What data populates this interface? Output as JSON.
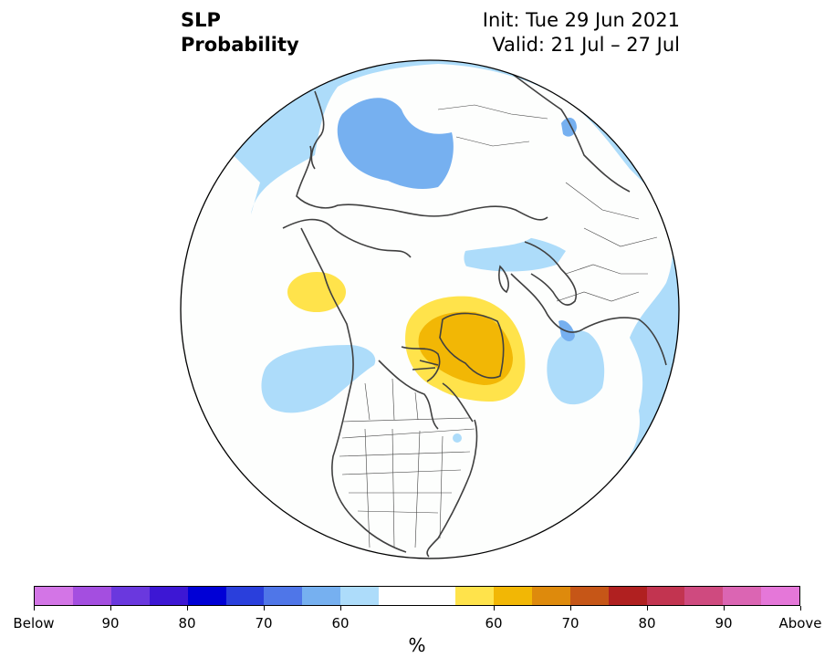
{
  "header": {
    "title_line1": "SLP",
    "title_line2": "Probability",
    "init": "Init: Tue 29 Jun 2021",
    "valid": "Valid: 21 Jul – 27 Jul"
  },
  "map": {
    "projection": "north-polar-stereographic",
    "region": "Northern Hemisphere",
    "background_color": "#ffffff",
    "coastline_color": "#404040"
  },
  "legend": {
    "unit": "%",
    "colors": [
      "#d375e6",
      "#a44ee0",
      "#6a38de",
      "#3d17d4",
      "#0000d6",
      "#2a3fdc",
      "#4f76e8",
      "#76b0f0",
      "#addcfa",
      "#ffffff",
      "#ffffff",
      "#ffe34b",
      "#f2b705",
      "#de8a0c",
      "#c65617",
      "#b02020",
      "#c23450",
      "#cf4a7f",
      "#db65b3",
      "#e577d9"
    ],
    "tick_labels": [
      "Below",
      "90",
      "80",
      "70",
      "60",
      "60",
      "70",
      "80",
      "90",
      "Above"
    ]
  }
}
